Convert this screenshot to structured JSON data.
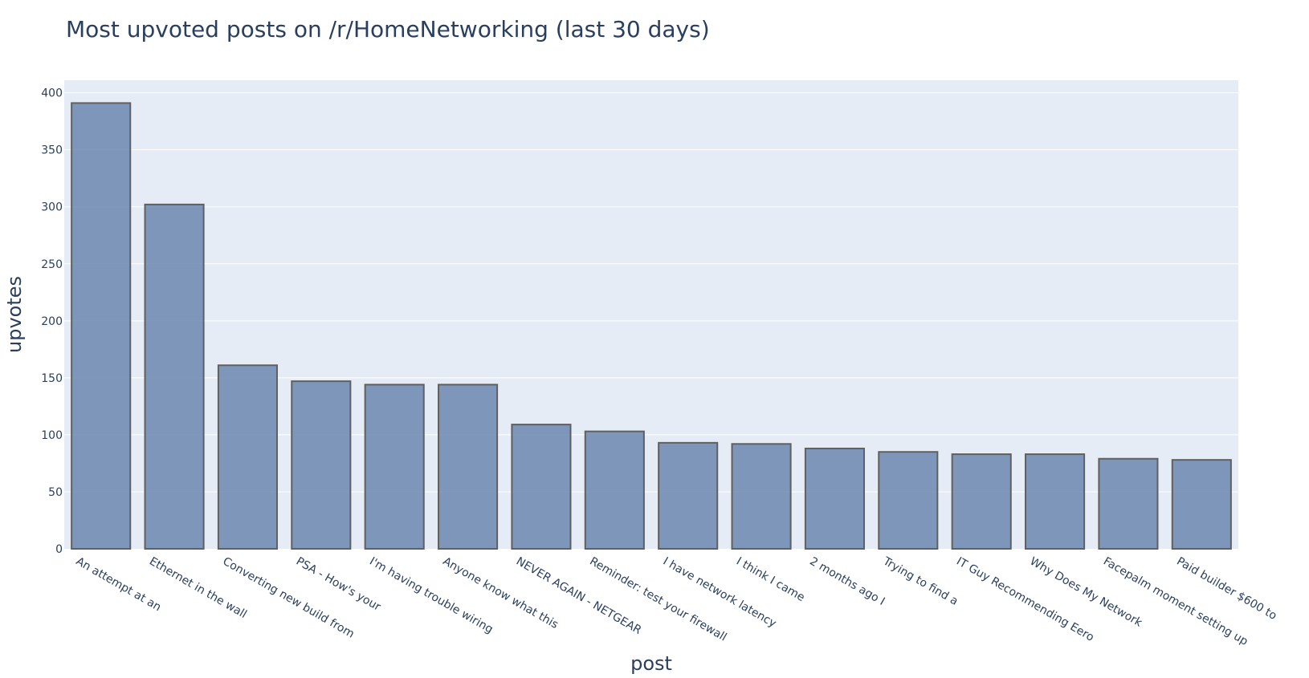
{
  "chart_data": {
    "type": "bar",
    "title": "Most upvoted posts on /r/HomeNetworking (last 30 days)",
    "xlabel": "post",
    "ylabel": "upvotes",
    "ylim": [
      0,
      411
    ],
    "yticks": [
      0,
      50,
      100,
      150,
      200,
      250,
      300,
      350,
      400
    ],
    "grid": true,
    "categories": [
      "An attempt at an",
      "Ethernet in the wall",
      "Converting new build from",
      "PSA - How's your",
      "I'm having trouble wiring",
      "Anyone know what this",
      "NEVER AGAIN - NETGEAR",
      "Reminder: test your firewall",
      "I have network latency",
      "I think I came",
      "2 months ago I",
      "Trying to find a",
      "IT Guy Recommending Eero",
      "Why Does My Network",
      "Facepalm moment setting up",
      "Paid builder $600 to"
    ],
    "values": [
      391,
      302,
      161,
      147,
      144,
      144,
      109,
      103,
      93,
      92,
      88,
      85,
      83,
      83,
      79,
      78
    ],
    "colors": {
      "bar_fill": "#6381aa",
      "bar_edge": "#606060",
      "plot_bg": "#e5ecf6",
      "text": "#2a3f5f"
    }
  }
}
